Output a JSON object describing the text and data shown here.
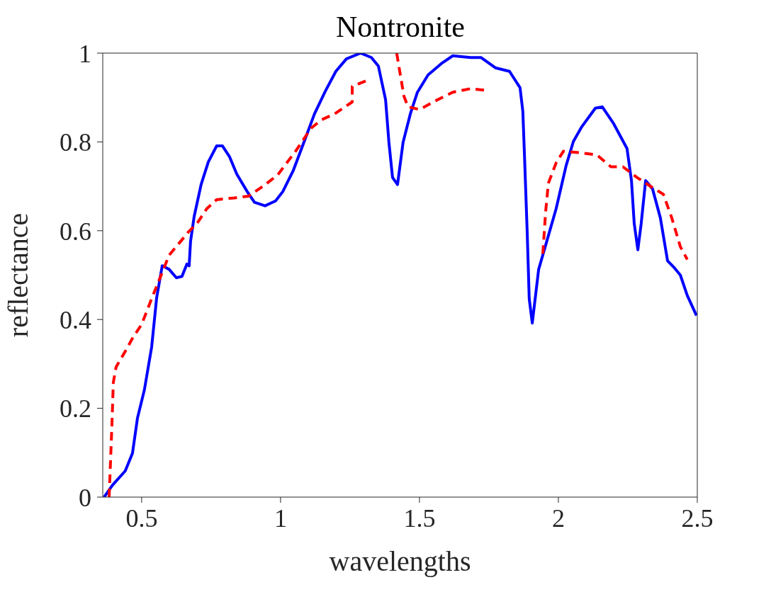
{
  "chart_data": {
    "type": "line",
    "title": "Nontronite",
    "xlabel": "wavelengths",
    "ylabel": "reflectance",
    "xlim": [
      0.36,
      2.5
    ],
    "xticks": [
      0.5,
      1,
      1.5,
      2,
      2.5
    ],
    "ylim": [
      0,
      1
    ],
    "yticks": [
      0,
      0.2,
      0.4,
      0.6,
      0.8,
      1
    ],
    "marker": "none",
    "series": [
      {
        "color": "#0000ff",
        "line_style": "solid",
        "x": [
          0.365,
          0.395,
          0.441,
          0.467,
          0.485,
          0.51,
          0.536,
          0.554,
          0.574,
          0.599,
          0.625,
          0.645,
          0.663,
          0.671,
          0.676,
          0.689,
          0.714,
          0.74,
          0.77,
          0.791,
          0.816,
          0.842,
          0.88,
          0.906,
          0.944,
          0.982,
          1.008,
          1.046,
          1.084,
          1.122,
          1.161,
          1.199,
          1.237,
          1.288,
          1.327,
          1.352,
          1.378,
          1.39,
          1.403,
          1.421,
          1.441,
          1.467,
          1.492,
          1.531,
          1.582,
          1.62,
          1.684,
          1.722,
          1.773,
          1.824,
          1.862,
          1.872,
          1.878,
          1.888,
          1.895,
          1.906,
          1.929,
          1.959,
          1.992,
          2.028,
          2.054,
          2.084,
          2.133,
          2.158,
          2.199,
          2.247,
          2.263,
          2.273,
          2.286,
          2.298,
          2.314,
          2.339,
          2.367,
          2.393,
          2.418,
          2.439,
          2.464,
          2.497
        ],
        "values": [
          0,
          0.027,
          0.059,
          0.099,
          0.178,
          0.242,
          0.338,
          0.449,
          0.521,
          0.513,
          0.494,
          0.497,
          0.525,
          0.521,
          0.576,
          0.632,
          0.704,
          0.755,
          0.791,
          0.791,
          0.767,
          0.728,
          0.688,
          0.664,
          0.656,
          0.667,
          0.688,
          0.736,
          0.799,
          0.863,
          0.914,
          0.959,
          0.987,
          1,
          0.99,
          0.971,
          0.895,
          0.799,
          0.72,
          0.704,
          0.799,
          0.863,
          0.911,
          0.951,
          0.978,
          0.994,
          0.99,
          0.99,
          0.967,
          0.959,
          0.922,
          0.869,
          0.769,
          0.592,
          0.447,
          0.392,
          0.513,
          0.578,
          0.65,
          0.747,
          0.801,
          0.834,
          0.876,
          0.879,
          0.841,
          0.785,
          0.713,
          0.616,
          0.557,
          0.616,
          0.713,
          0.694,
          0.629,
          0.532,
          0.516,
          0.5,
          0.454,
          0.409
        ]
      },
      {
        "color": "#ff0000",
        "line_style": "dashed",
        "x": [
          0.383,
          0.393,
          0.398,
          0.408,
          0.439,
          0.469,
          0.5,
          0.536,
          0.574,
          0.599,
          0.635,
          0.668,
          0.699,
          0.735,
          0.77,
          0.834,
          0.885,
          0.939,
          0.99,
          1.054,
          1.11,
          1.148,
          1.194,
          1.258,
          1.258,
          1.309,
          1.36,
          1.418,
          1.444,
          1.459,
          1.5,
          1.559,
          1.62,
          1.684,
          1.745,
          1.85,
          1.944,
          1.954,
          1.964,
          1.992,
          2.018,
          2.074,
          2.138,
          2.189,
          2.232,
          2.283,
          2.339,
          2.378,
          2.408,
          2.439,
          2.464
        ],
        "values": [
          0,
          0.162,
          0.258,
          0.293,
          0.326,
          0.36,
          0.389,
          0.447,
          0.506,
          0.545,
          0.572,
          0.597,
          0.616,
          0.65,
          0.67,
          0.674,
          0.678,
          0.701,
          0.726,
          0.779,
          0.831,
          0.85,
          0.863,
          0.89,
          0.925,
          0.938,
          null,
          1,
          0.903,
          0.879,
          0.873,
          0.893,
          0.912,
          0.92,
          0.916,
          null,
          0.548,
          0.642,
          0.707,
          0.753,
          0.779,
          0.776,
          0.771,
          0.744,
          0.744,
          0.72,
          0.697,
          0.682,
          0.629,
          0.564,
          0.535
        ]
      }
    ]
  }
}
